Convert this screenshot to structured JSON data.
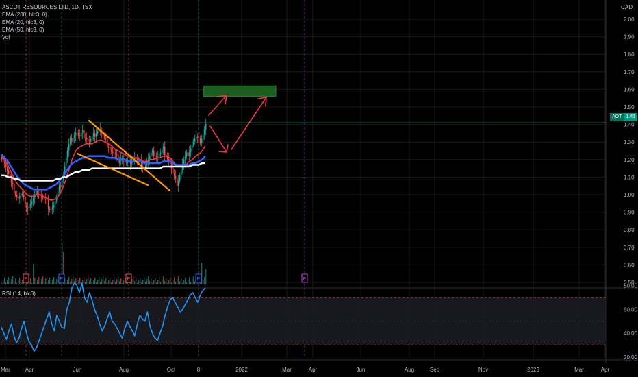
{
  "header": {
    "title": "ASCOT RESOURCES LTD, 1D, TSX",
    "indicators": [
      "EMA (200, hlc3, 0)",
      "EMA (20, hlc3, 0)",
      "EMA (50, hlc3, 0)",
      "Vol"
    ],
    "currency": "CAD"
  },
  "rsi": {
    "label": "RSI (14, hlc3)",
    "levels": [
      "80.00",
      "60.00",
      "40.00",
      "20.00"
    ]
  },
  "price_tag": {
    "symbol": "AOT",
    "value": "1.41"
  },
  "colors": {
    "background": "#000000",
    "grid": "#1a1a1a",
    "up": "#26a69a",
    "down": "#ef5350",
    "ema_fast": "#f23645",
    "ema_mid": "#2962ff",
    "ema_slow": "#ffffff",
    "wedge": "#ff9800",
    "arrows": "#f23645",
    "target_box": "#1b5e20",
    "rsi_line": "#2196f3"
  },
  "chart_data": {
    "type": "candlestick",
    "title": "ASCOT RESOURCES LTD, 1D, TSX",
    "xlabel": "",
    "ylabel": "",
    "x_ticks": [
      "Mar",
      "Apr",
      "Jun",
      "Aug",
      "Oct",
      "8",
      "2022",
      "Mar",
      "Apr",
      "Jun",
      "Aug",
      "Sep",
      "Nov",
      "2023",
      "Mar",
      "Apr"
    ],
    "y_ticks": [
      "0.50",
      "0.60",
      "0.70",
      "0.80",
      "0.90",
      "1.00",
      "1.10",
      "1.20",
      "1.30",
      "1.40",
      "1.50",
      "1.60",
      "1.70",
      "1.80",
      "1.90",
      "2.00"
    ],
    "ylim": [
      0.5,
      2.0
    ],
    "last_price": 1.41,
    "price_path": [
      1.22,
      1.18,
      1.12,
      1.05,
      1.02,
      0.98,
      1.0,
      0.96,
      0.93,
      0.95,
      0.98,
      1.02,
      1.0,
      0.97,
      0.95,
      0.92,
      0.94,
      0.98,
      1.05,
      1.12,
      1.22,
      1.3,
      1.34,
      1.36,
      1.32,
      1.35,
      1.33,
      1.3,
      1.32,
      1.36,
      1.38,
      1.34,
      1.3,
      1.28,
      1.24,
      1.22,
      1.2,
      1.22,
      1.18,
      1.17,
      1.2,
      1.21,
      1.19,
      1.18,
      1.16,
      1.19,
      1.22,
      1.24,
      1.22,
      1.23,
      1.26,
      1.22,
      1.18,
      1.1,
      1.06,
      1.12,
      1.18,
      1.22,
      1.26,
      1.3,
      1.32,
      1.3,
      1.34,
      1.4
    ],
    "series": [
      {
        "name": "EMA (20, hlc3, 0)",
        "values": [
          1.22,
          1.2,
          1.17,
          1.13,
          1.09,
          1.06,
          1.04,
          1.02,
          1.0,
          0.99,
          0.99,
          1.0,
          1.0,
          0.99,
          0.98,
          0.97,
          0.97,
          0.98,
          1.0,
          1.04,
          1.09,
          1.15,
          1.21,
          1.25,
          1.27,
          1.28,
          1.29,
          1.29,
          1.29,
          1.3,
          1.31,
          1.31,
          1.3,
          1.29,
          1.28,
          1.26,
          1.25,
          1.24,
          1.23,
          1.22,
          1.22,
          1.21,
          1.21,
          1.2,
          1.19,
          1.19,
          1.2,
          1.2,
          1.21,
          1.21,
          1.22,
          1.22,
          1.21,
          1.19,
          1.17,
          1.16,
          1.16,
          1.17,
          1.19,
          1.2,
          1.22,
          1.23,
          1.25,
          1.28
        ]
      },
      {
        "name": "EMA (50, hlc3, 0)",
        "values": [
          1.23,
          1.21,
          1.19,
          1.16,
          1.13,
          1.1,
          1.08,
          1.06,
          1.05,
          1.04,
          1.03,
          1.03,
          1.03,
          1.03,
          1.03,
          1.04,
          1.05,
          1.06,
          1.08,
          1.1,
          1.13,
          1.16,
          1.18,
          1.19,
          1.2,
          1.21,
          1.21,
          1.22,
          1.22,
          1.22,
          1.22,
          1.22,
          1.22,
          1.21,
          1.21,
          1.21,
          1.2,
          1.2,
          1.2,
          1.19,
          1.19,
          1.19,
          1.19,
          1.19,
          1.18,
          1.18,
          1.18,
          1.18,
          1.18,
          1.18,
          1.19,
          1.19,
          1.19,
          1.18,
          1.17,
          1.17,
          1.17,
          1.17,
          1.17,
          1.18,
          1.18,
          1.19,
          1.2,
          1.22
        ]
      },
      {
        "name": "EMA (200, hlc3, 0)",
        "values": [
          1.11,
          1.11,
          1.1,
          1.1,
          1.09,
          1.09,
          1.08,
          1.08,
          1.08,
          1.08,
          1.08,
          1.08,
          1.08,
          1.08,
          1.08,
          1.08,
          1.08,
          1.09,
          1.09,
          1.1,
          1.1,
          1.11,
          1.12,
          1.13,
          1.13,
          1.14,
          1.14,
          1.14,
          1.15,
          1.15,
          1.15,
          1.15,
          1.15,
          1.15,
          1.15,
          1.15,
          1.15,
          1.15,
          1.15,
          1.15,
          1.15,
          1.15,
          1.15,
          1.15,
          1.15,
          1.15,
          1.15,
          1.15,
          1.15,
          1.15,
          1.16,
          1.16,
          1.16,
          1.16,
          1.16,
          1.16,
          1.16,
          1.16,
          1.16,
          1.17,
          1.17,
          1.17,
          1.18,
          1.18
        ]
      }
    ],
    "rsi": {
      "name": "RSI (14, hlc3)",
      "ylim": [
        20,
        80
      ],
      "bands": [
        30,
        70
      ],
      "values": [
        45,
        40,
        35,
        42,
        48,
        38,
        32,
        36,
        44,
        50,
        40,
        33,
        30,
        25,
        28,
        34,
        40,
        46,
        52,
        58,
        48,
        42,
        55,
        50,
        45,
        44,
        60,
        66,
        78,
        82,
        80,
        74,
        82,
        70,
        66,
        74,
        68,
        60,
        55,
        48,
        42,
        46,
        52,
        58,
        50,
        48,
        44,
        40,
        36,
        44,
        50,
        46,
        42,
        38,
        48,
        55,
        52,
        50,
        58,
        46,
        40,
        36,
        34,
        40,
        46,
        55,
        62,
        68,
        70,
        66,
        62,
        58,
        60,
        64,
        68,
        72,
        74,
        70,
        66,
        72,
        76,
        78
      ]
    },
    "volume_markers": [
      "E",
      "E",
      "E",
      "E",
      "E"
    ],
    "annotations": {
      "target_zone": [
        1.56,
        1.62
      ],
      "resistance": 1.41
    }
  }
}
